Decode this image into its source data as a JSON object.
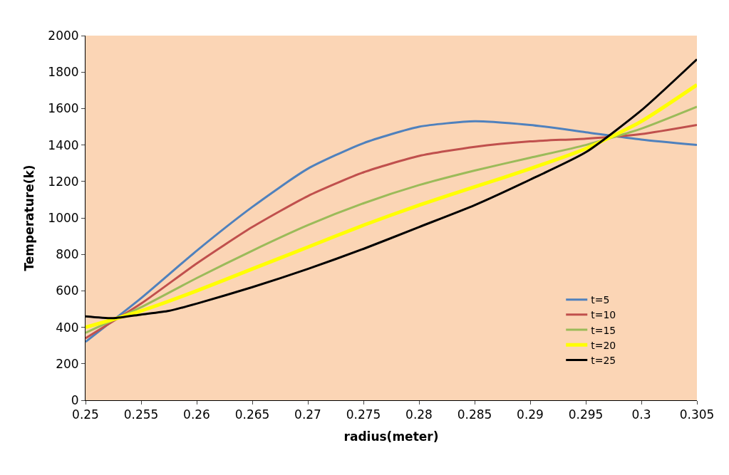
{
  "chart_data": {
    "type": "line",
    "xlabel": "radius(meter)",
    "ylabel": "Temperature(k)",
    "x": [
      0.25,
      0.255,
      0.26,
      0.265,
      0.27,
      0.275,
      0.28,
      0.285,
      0.29,
      0.295,
      0.3,
      0.305
    ],
    "series": [
      {
        "name": "t=5",
        "color": "#4f81bd",
        "values": [
          320,
          560,
          820,
          1060,
          1270,
          1410,
          1500,
          1530,
          1510,
          1470,
          1430,
          1400
        ]
      },
      {
        "name": "t=10",
        "color": "#c0504d",
        "values": [
          340,
          530,
          750,
          950,
          1120,
          1250,
          1340,
          1390,
          1420,
          1435,
          1460,
          1510
        ]
      },
      {
        "name": "t=15",
        "color": "#9bbb59",
        "values": [
          370,
          510,
          670,
          820,
          960,
          1080,
          1180,
          1260,
          1330,
          1400,
          1490,
          1610
        ]
      },
      {
        "name": "t=20",
        "color": "#ffff00",
        "values": [
          400,
          490,
          600,
          720,
          840,
          960,
          1070,
          1170,
          1270,
          1380,
          1530,
          1730
        ]
      },
      {
        "name": "t=25",
        "color": "#000000",
        "x": [
          0.25,
          0.2525,
          0.255,
          0.2575,
          0.26,
          0.265,
          0.27,
          0.275,
          0.28,
          0.285,
          0.29,
          0.295,
          0.3,
          0.305
        ],
        "values": [
          460,
          450,
          470,
          490,
          530,
          620,
          720,
          830,
          950,
          1070,
          1210,
          1360,
          1590,
          1870
        ]
      }
    ],
    "xlim": [
      0.25,
      0.305
    ],
    "xticks": [
      0.25,
      0.255,
      0.26,
      0.265,
      0.27,
      0.275,
      0.28,
      0.285,
      0.29,
      0.295,
      0.3,
      0.305
    ],
    "ylim": [
      0,
      2000
    ],
    "yticks": [
      0,
      200,
      400,
      600,
      800,
      1000,
      1200,
      1400,
      1600,
      1800,
      2000
    ],
    "grid": false,
    "legend": "bottom right",
    "marker": "none",
    "line_style": "solid"
  }
}
